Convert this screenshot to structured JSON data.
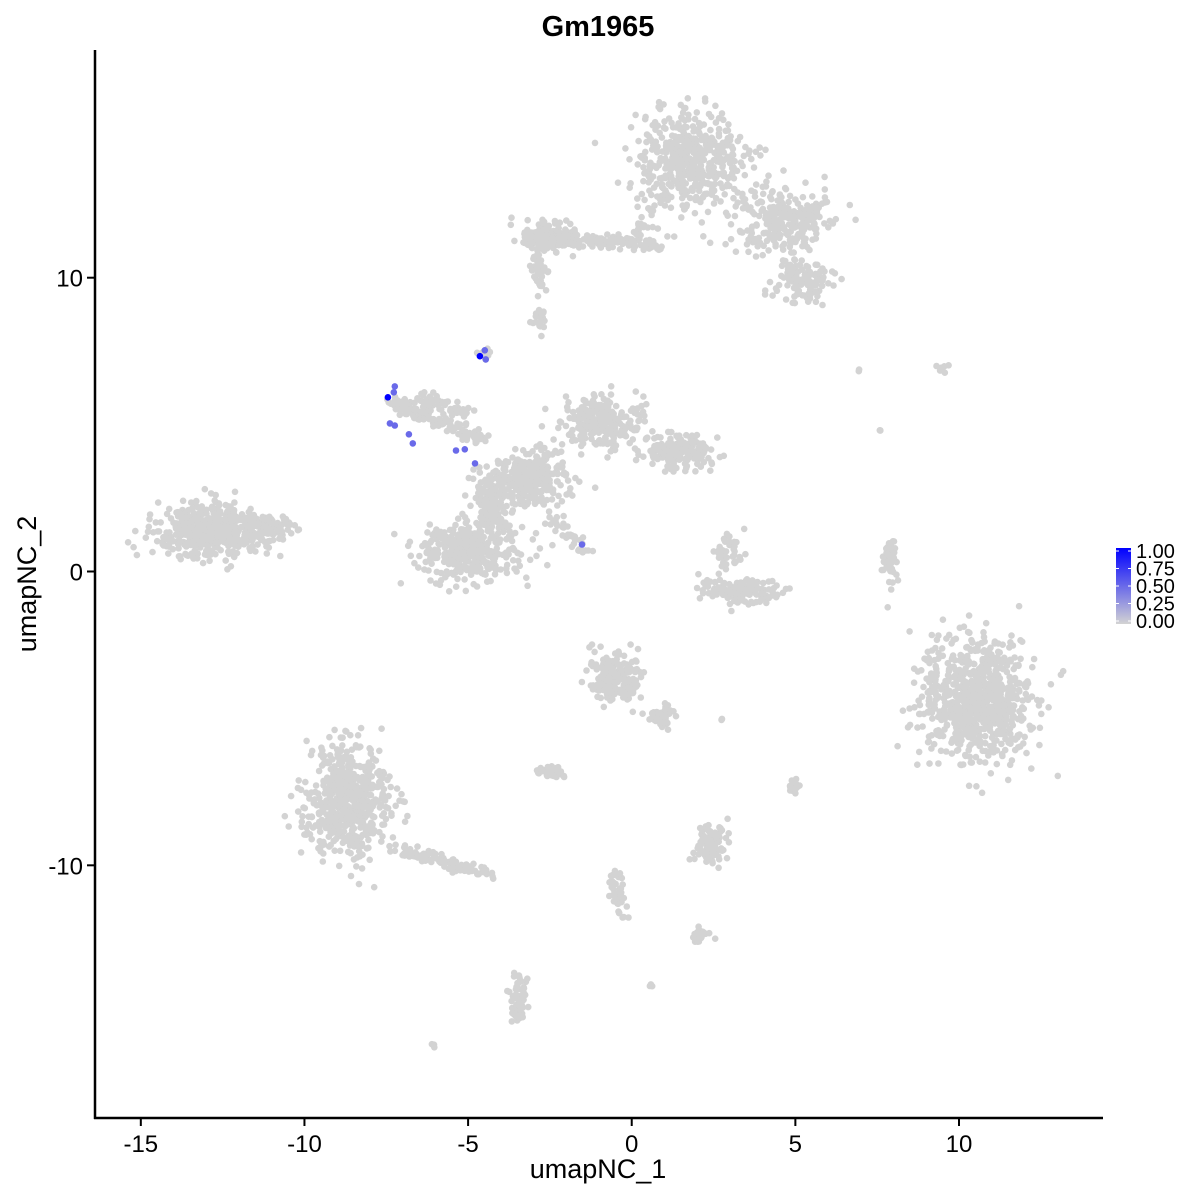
{
  "chart_data": {
    "type": "scatter",
    "title": "Gm1965",
    "xlabel": "umapNC_1",
    "ylabel": "umapNC_2",
    "xlim": [
      -16.4,
      14.4
    ],
    "ylim": [
      -18.6,
      17.75
    ],
    "xticks": [
      -15,
      -10,
      -5,
      0,
      5,
      10
    ],
    "yticks": [
      -10,
      0,
      10
    ],
    "xtick_labels": [
      "-15",
      "-10",
      "-5",
      "0",
      "5",
      "10"
    ],
    "ytick_labels": [
      "-10",
      "0",
      "10"
    ],
    "grid": false,
    "color_low": "#d3d3d3",
    "color_high": "#0000ff",
    "legend": {
      "placement": "right",
      "type": "colorbar",
      "range": [
        0,
        1
      ],
      "labels": [
        "1.00",
        "0.75",
        "0.50",
        "0.25",
        "0.00"
      ],
      "values": [
        1.0,
        0.75,
        0.5,
        0.25,
        0.0
      ]
    },
    "zero_expression_clusters": [
      {
        "center": [
          1.8,
          14.0
        ],
        "spread": [
          1.2,
          1.2
        ],
        "n": 500
      },
      {
        "center": [
          4.6,
          12.0
        ],
        "spread": [
          1.0,
          0.8
        ],
        "n": 250
      },
      {
        "center": [
          5.2,
          9.9
        ],
        "spread": [
          0.6,
          0.6
        ],
        "n": 120
      },
      {
        "center": [
          -2.5,
          11.4
        ],
        "spread": [
          0.6,
          0.4
        ],
        "n": 120
      },
      {
        "center": [
          -2.8,
          10.3
        ],
        "spread": [
          0.2,
          0.5
        ],
        "n": 40
      },
      {
        "center": [
          -12.9,
          1.4
        ],
        "spread": [
          1.2,
          0.6
        ],
        "n": 500
      },
      {
        "center": [
          -11.2,
          1.5
        ],
        "spread": [
          0.6,
          0.3
        ],
        "n": 80
      },
      {
        "center": [
          -3.1,
          3.1
        ],
        "spread": [
          0.8,
          0.6
        ],
        "n": 300
      },
      {
        "center": [
          -0.9,
          5.1
        ],
        "spread": [
          0.9,
          0.6
        ],
        "n": 250
      },
      {
        "center": [
          1.5,
          4.1
        ],
        "spread": [
          0.8,
          0.4
        ],
        "n": 200
      },
      {
        "center": [
          -4.9,
          0.7
        ],
        "spread": [
          1.1,
          0.7
        ],
        "n": 400
      },
      {
        "center": [
          -4.3,
          2.4
        ],
        "spread": [
          0.4,
          0.8
        ],
        "n": 150
      },
      {
        "center": [
          3.2,
          -0.65
        ],
        "spread": [
          0.8,
          0.3
        ],
        "n": 150
      },
      {
        "center": [
          3.0,
          0.7
        ],
        "spread": [
          0.3,
          0.4
        ],
        "n": 40
      },
      {
        "center": [
          7.9,
          0.35
        ],
        "spread": [
          0.15,
          0.6
        ],
        "n": 50
      },
      {
        "center": [
          10.5,
          -4.4
        ],
        "spread": [
          1.2,
          1.5
        ],
        "n": 800
      },
      {
        "center": [
          -0.5,
          -3.7
        ],
        "spread": [
          0.6,
          0.6
        ],
        "n": 200
      },
      {
        "center": [
          0.9,
          -5.0
        ],
        "spread": [
          0.3,
          0.4
        ],
        "n": 50
      },
      {
        "center": [
          -8.7,
          -7.8
        ],
        "spread": [
          0.9,
          1.4
        ],
        "n": 600
      },
      {
        "center": [
          -2.5,
          -6.8
        ],
        "spread": [
          0.3,
          0.15
        ],
        "n": 50
      },
      {
        "center": [
          2.4,
          -9.2
        ],
        "spread": [
          0.4,
          0.5
        ],
        "n": 100
      },
      {
        "center": [
          -3.45,
          -14.6
        ],
        "spread": [
          0.2,
          0.6
        ],
        "n": 60
      },
      {
        "center": [
          2.1,
          -12.4
        ],
        "spread": [
          0.25,
          0.15
        ],
        "n": 30
      },
      {
        "center": [
          -4.5,
          7.4
        ],
        "spread": [
          0.15,
          0.15
        ],
        "n": 15
      },
      {
        "center": [
          -2.8,
          8.6
        ],
        "spread": [
          0.15,
          0.3
        ],
        "n": 20
      },
      {
        "center": [
          5.0,
          -7.3
        ],
        "spread": [
          0.15,
          0.2
        ],
        "n": 15
      },
      {
        "center": [
          9.6,
          6.9
        ],
        "spread": [
          0.2,
          0.1
        ],
        "n": 6
      },
      {
        "center": [
          7.0,
          6.85
        ],
        "spread": [
          0.05,
          0.05
        ],
        "n": 2
      },
      {
        "center": [
          7.6,
          4.8
        ],
        "spread": [
          0.05,
          0.1
        ],
        "n": 3
      },
      {
        "center": [
          2.7,
          -5.0
        ],
        "spread": [
          0.1,
          0.05
        ],
        "n": 3
      },
      {
        "center": [
          -6.05,
          -16.1
        ],
        "spread": [
          0.05,
          0.05
        ],
        "n": 3
      },
      {
        "center": [
          0.6,
          -14.1
        ],
        "spread": [
          0.05,
          0.05
        ],
        "n": 3
      }
    ],
    "zero_expression_segments": [
      {
        "from": [
          -3.4,
          11.4
        ],
        "to": [
          0.9,
          11.1
        ],
        "n": 150
      },
      {
        "from": [
          -7.4,
          5.8
        ],
        "to": [
          -4.6,
          4.5
        ],
        "n": 120
      },
      {
        "from": [
          -6.5,
          5.9
        ],
        "to": [
          -5.0,
          5.4
        ],
        "n": 60
      },
      {
        "from": [
          -2.5,
          1.9
        ],
        "to": [
          -1.25,
          0.55
        ],
        "n": 40
      },
      {
        "from": [
          -7.0,
          -9.5
        ],
        "to": [
          -4.3,
          -10.3
        ],
        "n": 100
      },
      {
        "from": [
          -0.6,
          -10.2
        ],
        "to": [
          -0.2,
          -11.9
        ],
        "n": 40
      },
      {
        "from": [
          0.0,
          11.2
        ],
        "to": [
          1.2,
          13.0
        ],
        "n": 40
      }
    ],
    "expressing_points": [
      {
        "x": -4.64,
        "y": 7.33,
        "value": 1.0
      },
      {
        "x": -4.49,
        "y": 7.53,
        "value": 0.5
      },
      {
        "x": -4.46,
        "y": 7.22,
        "value": 0.5
      },
      {
        "x": -7.45,
        "y": 5.93,
        "value": 1.0
      },
      {
        "x": -7.24,
        "y": 6.3,
        "value": 0.5
      },
      {
        "x": -7.27,
        "y": 6.1,
        "value": 0.5
      },
      {
        "x": -7.39,
        "y": 5.04,
        "value": 0.5
      },
      {
        "x": -7.24,
        "y": 4.97,
        "value": 0.5
      },
      {
        "x": -6.81,
        "y": 4.67,
        "value": 0.5
      },
      {
        "x": -6.69,
        "y": 4.36,
        "value": 0.5
      },
      {
        "x": -5.37,
        "y": 4.12,
        "value": 0.5
      },
      {
        "x": -5.1,
        "y": 4.16,
        "value": 0.5
      },
      {
        "x": -4.79,
        "y": 3.68,
        "value": 0.5
      },
      {
        "x": -1.52,
        "y": 0.92,
        "value": 0.5
      }
    ]
  }
}
